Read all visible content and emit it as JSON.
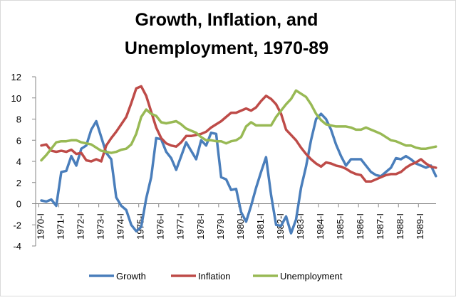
{
  "chart_data": {
    "type": "line",
    "title": [
      "Growth, Inflation, and",
      "Unemployment, 1970-89"
    ],
    "categories": [
      "1970-I",
      null,
      null,
      null,
      "1971-I",
      null,
      null,
      null,
      "1972-I",
      null,
      null,
      null,
      "1973-I",
      null,
      null,
      null,
      "1974-I",
      null,
      null,
      null,
      "1975-I",
      null,
      null,
      null,
      "1976-I",
      null,
      null,
      null,
      "1977-I",
      null,
      null,
      null,
      "1978-I",
      null,
      null,
      null,
      "1979-I",
      null,
      null,
      null,
      "1980-I",
      null,
      null,
      null,
      "1981-I",
      null,
      null,
      null,
      "1982-I",
      null,
      null,
      null,
      "1983-I",
      null,
      null,
      null,
      "1984-I",
      null,
      null,
      null,
      "1985-I",
      null,
      null,
      null,
      "1986-I",
      null,
      null,
      null,
      "1987-I",
      null,
      null,
      null,
      "1988-I",
      null,
      null,
      null,
      "1989-I",
      null,
      null,
      null
    ],
    "series": [
      {
        "name": "Growth",
        "color": "#4a7ebb",
        "values": [
          0.3,
          0.2,
          0.4,
          -0.2,
          3.0,
          3.1,
          4.5,
          3.6,
          5.2,
          5.5,
          7.0,
          7.8,
          6.3,
          4.8,
          4.2,
          0.6,
          -0.2,
          -0.6,
          -2.0,
          -2.6,
          -2.2,
          0.5,
          2.5,
          6.2,
          6.1,
          4.9,
          4.3,
          3.2,
          4.5,
          5.8,
          5.0,
          4.2,
          6.0,
          5.5,
          6.7,
          6.6,
          2.5,
          2.3,
          1.3,
          1.4,
          -0.8,
          -1.7,
          -0.2,
          1.5,
          3.0,
          4.4,
          0.8,
          -2.0,
          -2.1,
          -1.2,
          -2.8,
          -1.5,
          1.5,
          3.5,
          6.0,
          8.0,
          8.5,
          8.0,
          7.0,
          5.6,
          4.5,
          3.6,
          4.2,
          4.2,
          4.2,
          3.6,
          3.0,
          2.7,
          2.6,
          3.0,
          3.4,
          4.3,
          4.2,
          4.5,
          4.2,
          3.8,
          3.6,
          3.4,
          3.6,
          2.6
        ]
      },
      {
        "name": "Inflation",
        "color": "#be4b48",
        "values": [
          5.5,
          5.6,
          5.0,
          4.9,
          5.0,
          4.9,
          5.1,
          4.7,
          4.8,
          4.1,
          4.0,
          4.2,
          4.0,
          5.5,
          6.2,
          6.8,
          7.5,
          8.2,
          9.5,
          10.9,
          11.1,
          10.2,
          8.7,
          7.2,
          6.2,
          5.7,
          5.5,
          5.4,
          5.8,
          6.4,
          6.4,
          6.5,
          6.6,
          6.8,
          7.2,
          7.5,
          7.8,
          8.2,
          8.6,
          8.6,
          8.8,
          9.0,
          8.8,
          9.1,
          9.7,
          10.2,
          9.9,
          9.4,
          8.5,
          7.0,
          6.5,
          6.0,
          5.3,
          4.7,
          4.2,
          3.8,
          3.5,
          3.9,
          3.8,
          3.6,
          3.5,
          3.3,
          3.0,
          2.8,
          2.7,
          2.1,
          2.1,
          2.3,
          2.5,
          2.7,
          2.8,
          2.8,
          3.0,
          3.4,
          3.7,
          3.9,
          4.2,
          3.8,
          3.5,
          3.4
        ]
      },
      {
        "name": "Unemployment",
        "color": "#98b954",
        "values": [
          4.1,
          4.6,
          5.2,
          5.8,
          5.9,
          5.9,
          6.0,
          6.0,
          5.8,
          5.7,
          5.6,
          5.3,
          5.0,
          4.9,
          4.8,
          4.9,
          5.1,
          5.2,
          5.6,
          6.6,
          8.2,
          8.9,
          8.5,
          8.3,
          7.7,
          7.6,
          7.7,
          7.8,
          7.5,
          7.1,
          6.9,
          6.7,
          6.3,
          6.0,
          6.0,
          5.9,
          5.9,
          5.7,
          5.9,
          6.0,
          6.3,
          7.3,
          7.7,
          7.4,
          7.4,
          7.4,
          7.4,
          8.2,
          8.8,
          9.4,
          9.9,
          10.7,
          10.4,
          10.1,
          9.4,
          8.5,
          7.9,
          7.5,
          7.4,
          7.3,
          7.3,
          7.3,
          7.2,
          7.0,
          7.0,
          7.2,
          7.0,
          6.8,
          6.6,
          6.3,
          6.0,
          5.9,
          5.7,
          5.5,
          5.5,
          5.3,
          5.2,
          5.2,
          5.3,
          5.4
        ]
      }
    ],
    "ylim": [
      -4,
      12
    ],
    "yticks": [
      -4,
      -2,
      0,
      2,
      4,
      6,
      8,
      10,
      12
    ],
    "grid": false,
    "legend": "bottom"
  }
}
